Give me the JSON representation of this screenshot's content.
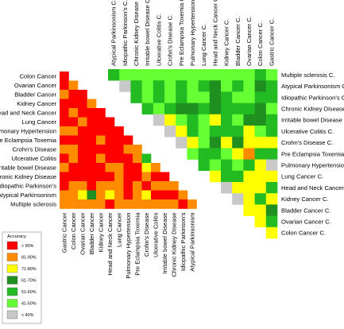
{
  "chart_data": {
    "type": "heatmap",
    "legend": {
      "title": "Accuracy",
      "bins": [
        {
          "label": "> 90%",
          "color": "#ff0000"
        },
        {
          "label": "81-90%",
          "color": "#ff8c00"
        },
        {
          "label": "71-80%",
          "color": "#ffff00"
        },
        {
          "label": "61-70%",
          "color": "#1f8f1f"
        },
        {
          "label": "51-60%",
          "color": "#22bb22"
        },
        {
          "label": "41-50%",
          "color": "#66ff33"
        },
        {
          "label": "< 40%",
          "color": "#c8c8c8"
        }
      ]
    },
    "lower_matrix": {
      "rows": [
        "Colon Cancer",
        "Ovarian Cancer",
        "Bladder Cancer",
        "Kidney Cancer",
        "Head and Neck Cancer",
        "Lung Cancer",
        "Pulmonary Hypertension",
        "Pre Eclampsia Toxemia",
        "Crohn's Disease",
        "Ulcerative Colitis",
        "Irritable bowel Disease",
        "Chronic Kidney Disease",
        "Idiopathic Parkinson's",
        "Atypical Parkinsonism",
        "Multiple sclerosis"
      ],
      "cols": [
        "Gastric Cancer",
        "Colon Cancer",
        "Ovarian Cancer",
        "Bladder Cancer",
        "Kidney Cancer",
        "Head and Neck Cancer",
        "Lung Cancer",
        "Pulmonary Hypertension",
        "Pre Eclampsia Toxemia",
        "Crohn's Disease",
        "Ulcerative Colitis",
        "Irritable bowel Disease",
        "Chronic Kidney Disease",
        "Idiopathic Parkinson's",
        "Atypical Parkinsonism"
      ],
      "cells": [
        [
          "> 90%"
        ],
        [
          "> 90%",
          "81-90%"
        ],
        [
          "81-90%",
          "> 90%",
          "> 90%"
        ],
        [
          "> 90%",
          "> 90%",
          "> 90%",
          "81-90%"
        ],
        [
          "> 90%",
          "81-90%",
          "> 90%",
          "> 90%",
          "> 90%"
        ],
        [
          "> 90%",
          "> 90%",
          "81-90%",
          "> 90%",
          "> 90%",
          "> 90%"
        ],
        [
          "81-90%",
          "81-90%",
          "> 90%",
          "> 90%",
          "> 90%",
          "> 90%",
          "> 90%"
        ],
        [
          "> 90%",
          "> 90%",
          "> 90%",
          "> 90%",
          "81-90%",
          "> 90%",
          "> 90%",
          "> 90%"
        ],
        [
          "81-90%",
          "81-90%",
          "> 90%",
          "> 90%",
          "> 90%",
          "> 90%",
          "> 90%",
          "81-90%",
          "81-90%"
        ],
        [
          "> 90%",
          "81-90%",
          "> 90%",
          "> 90%",
          "81-90%",
          "> 90%",
          "> 90%",
          "> 90%",
          "81-90%",
          "51-60%"
        ],
        [
          "81-90%",
          "> 90%",
          "> 90%",
          "> 90%",
          "> 90%",
          "81-90%",
          "81-90%",
          "> 90%",
          "> 90%",
          "71-80%",
          "81-90%"
        ],
        [
          "> 90%",
          "> 90%",
          "> 90%",
          "> 90%",
          "> 90%",
          "> 90%",
          "81-90%",
          "> 90%",
          "> 90%",
          "81-90%",
          "> 90%",
          "> 90%"
        ],
        [
          "> 90%",
          "81-90%",
          "81-90%",
          "> 90%",
          "81-90%",
          "81-90%",
          "81-90%",
          "> 90%",
          "81-90%",
          "> 90%",
          "81-90%",
          "81-90%",
          "81-90%"
        ],
        [
          "81-90%",
          "81-90%",
          "71-80%",
          "61-70%",
          "81-90%",
          "71-80%",
          "81-90%",
          "> 90%",
          "81-90%",
          "71-80%",
          "> 90%",
          "> 90%",
          "> 90%",
          "81-90%"
        ],
        [
          "81-90%",
          "81-90%",
          "81-90%",
          "81-90%",
          "81-90%",
          "> 90%",
          "81-90%",
          "81-90%",
          "81-90%",
          "81-90%",
          "81-90%",
          "81-90%",
          "81-90%",
          "> 90%",
          "81-90%"
        ]
      ]
    },
    "upper_matrix": {
      "rows": [
        "Multiple sclerosis C.",
        "Atypical Parkinsonism C.",
        "Idiopathic Parkinson's C.",
        "Chronic Kidney Disease C.",
        "Irritable bowel Disease C.",
        "Ulcerative Colitis C.",
        "Crohn's Disease C.",
        "Pre Eclampsia Toxemia C.",
        "Pulmonary Hypertension C.",
        "Lung Cancer C.",
        "Head and Neck Cancer C.",
        "Kidney Cancer C.",
        "Bladder Cancer C.",
        "Ovarian Cancer C.",
        "Colon Cancer C."
      ],
      "cols": [
        "Atypical Parkinsonism C.",
        "Idiopathic Parkinson's C.",
        "Chronic Kidney Disease C.",
        "Irritable bowel Disease C.",
        "Ulcerative Colitis C.",
        "Crohn's Disease C.",
        "Pre Eclampsia Toxemia C.",
        "Pulmonary Hypertension C.",
        "Lung Cancer C.",
        "Head and Neck Cancer C.",
        "Kidney Cancer C.",
        "Bladder Cancer C.",
        "Ovarian Cancer C.",
        "Colon Cancer C.",
        "Gastric Cancer C."
      ],
      "cells": [
        [
          "51-60%",
          "41-50%",
          "41-50%",
          "41-50%",
          "41-50%",
          "41-50%",
          "41-50%",
          "41-50%",
          "41-50%",
          "41-50%",
          "41-50%",
          "41-50%",
          "41-50%",
          "51-60%",
          "41-50%"
        ],
        [
          "< 40%",
          "51-60%",
          "41-50%",
          "51-60%",
          "41-50%",
          "51-60%",
          "41-50%",
          "51-60%",
          "61-70%",
          "41-50%",
          "51-60%",
          "41-50%",
          "61-70%",
          "51-60%"
        ],
        [
          "51-60%",
          "41-50%",
          "51-60%",
          "41-50%",
          "51-60%",
          "41-50%",
          "41-50%",
          "61-70%",
          "51-60%",
          "41-50%",
          "41-50%",
          "51-60%",
          "51-60%"
        ],
        [
          "51-60%",
          "41-50%",
          "51-60%",
          "61-70%",
          "61-70%",
          "51-60%",
          "61-70%",
          "51-60%",
          "51-60%",
          "51-60%",
          "61-70%",
          "41-50%"
        ],
        [
          "< 40%",
          "71-80%",
          "41-50%",
          "51-60%",
          "41-50%",
          "71-80%",
          "51-60%",
          "41-50%",
          "61-70%",
          "61-70%",
          "51-60%"
        ],
        [
          "< 40%",
          "71-80%",
          "51-60%",
          "41-50%",
          "51-60%",
          "51-60%",
          "51-60%",
          "71-80%",
          "41-50%",
          "51-60%"
        ],
        [
          "< 40%",
          "71-80%",
          "41-50%",
          "61-70%",
          "71-80%",
          "61-70%",
          "71-80%",
          "71-80%",
          "71-80%"
        ],
        [
          "41-50%",
          "51-60%",
          "51-60%",
          "41-50%",
          "71-80%",
          "81-90%",
          "51-60%",
          "51-60%"
        ],
        [
          "51-60%",
          "41-50%",
          "51-60%",
          "41-50%",
          "51-60%",
          "71-80%",
          "< 40%"
        ],
        [
          "71-80%",
          "51-60%",
          "51-60%",
          "71-80%",
          "71-80%",
          "71-80%"
        ],
        [
          "< 40%",
          "71-80%",
          "71-80%",
          "71-80%",
          "51-60%"
        ],
        [
          "< 40%",
          "71-80%",
          "51-60%",
          "71-80%"
        ],
        [
          "71-80%",
          "71-80%",
          "61-70%"
        ],
        [
          "71-80%",
          "51-60%"
        ],
        [
          "71-80%"
        ]
      ]
    }
  }
}
